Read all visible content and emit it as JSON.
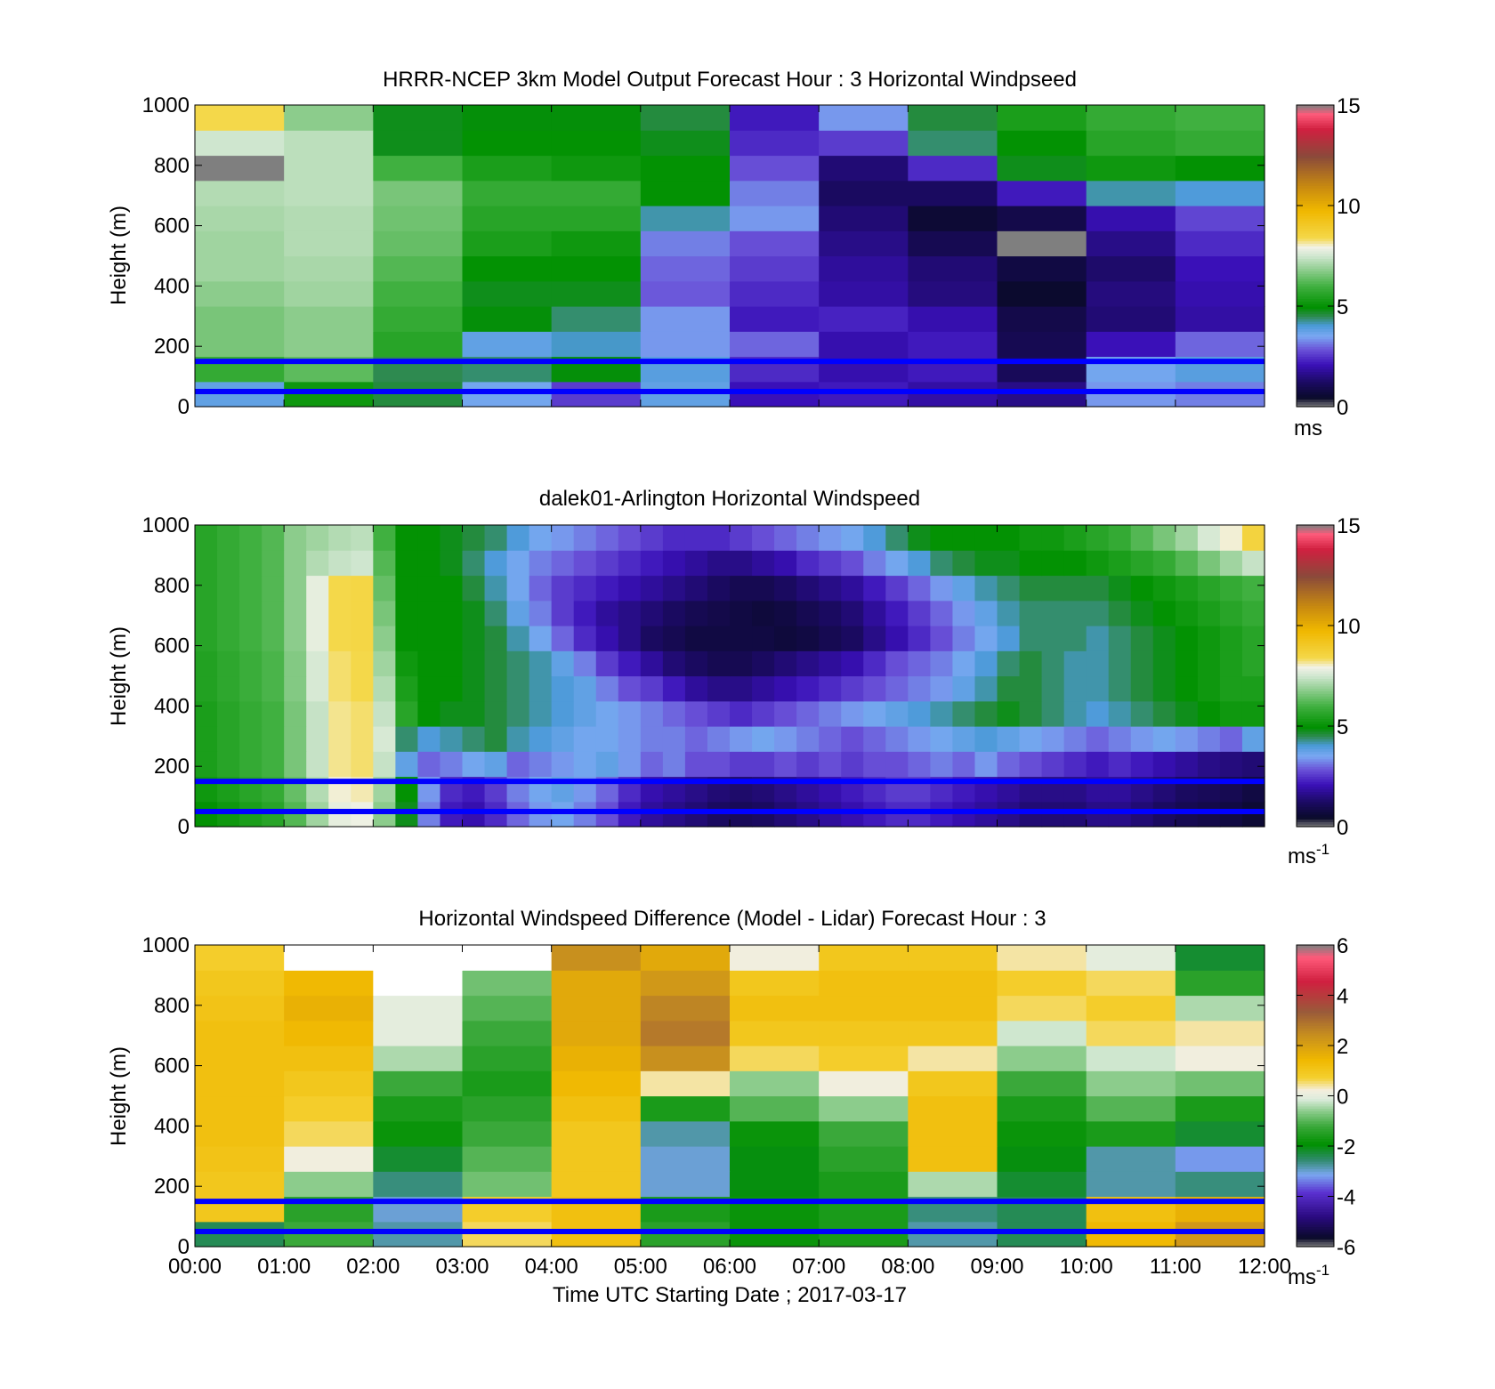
{
  "chart_data": [
    {
      "type": "heatmap",
      "title": "HRRR-NCEP 3km Model Output   Forecast Hour : 3 Horizontal Windpseed",
      "ylabel": "Height (m)",
      "xlabel": "",
      "ylim": [
        0,
        1000
      ],
      "yticks": [
        "0",
        "200",
        "400",
        "600",
        "800",
        "1000"
      ],
      "xticks": [],
      "colorbar": {
        "min": 0,
        "max": 15,
        "ticks": [
          "0",
          "5",
          "10",
          "15"
        ],
        "unit": "ms",
        "unit_sup": ""
      },
      "columns": 12,
      "grid": false,
      "reference_lines_m": [
        150,
        50
      ],
      "values": [
        [
          3.8,
          5.2,
          4.6,
          3.6,
          2.6,
          3.8,
          2.1,
          2.2,
          1.9,
          1.6,
          3.4,
          3.2
        ],
        [
          5.8,
          6.3,
          4.5,
          4.4,
          4.9,
          3.9,
          2.4,
          2.0,
          2.2,
          1.1,
          3.6,
          3.9
        ],
        [
          6.6,
          6.8,
          5.6,
          3.8,
          4.1,
          3.4,
          3.0,
          2.0,
          2.2,
          1.0,
          2.1,
          3.0
        ],
        [
          6.6,
          6.8,
          5.8,
          4.9,
          4.4,
          3.4,
          2.2,
          2.3,
          2.0,
          0.9,
          1.4,
          1.9
        ],
        [
          6.8,
          7.0,
          6.0,
          4.8,
          4.8,
          2.9,
          2.4,
          1.9,
          1.5,
          0.5,
          1.5,
          2.0
        ],
        [
          7.0,
          7.1,
          6.2,
          5.0,
          5.0,
          3.0,
          2.6,
          1.8,
          1.4,
          0.8,
          1.3,
          2.1
        ],
        [
          7.0,
          7.2,
          6.4,
          5.4,
          5.2,
          3.2,
          2.8,
          1.6,
          1.0,
          0.0,
          1.6,
          2.4
        ],
        [
          7.1,
          7.2,
          6.5,
          5.6,
          5.6,
          4.2,
          3.4,
          1.4,
          0.6,
          0.9,
          2.0,
          2.7
        ],
        [
          7.2,
          7.3,
          6.6,
          5.8,
          5.8,
          5.0,
          3.2,
          1.2,
          1.2,
          2.2,
          4.2,
          4.0
        ],
        [
          0.0,
          7.3,
          6.0,
          5.4,
          5.2,
          5.0,
          2.8,
          1.4,
          2.4,
          4.8,
          5.2,
          5.0
        ],
        [
          7.5,
          7.3,
          4.8,
          5.0,
          5.0,
          4.8,
          2.4,
          2.6,
          4.4,
          5.0,
          5.6,
          5.8
        ],
        [
          8.4,
          6.8,
          4.8,
          4.9,
          4.9,
          4.6,
          2.2,
          3.4,
          4.6,
          5.4,
          5.8,
          6.0
        ]
      ]
    },
    {
      "type": "heatmap",
      "title": "dalek01-Arlington  Horizontal Windspeed",
      "ylabel": "Height (m)",
      "xlabel": "",
      "ylim": [
        0,
        1000
      ],
      "yticks": [
        "0",
        "200",
        "400",
        "600",
        "800",
        "1000"
      ],
      "xticks": [],
      "colorbar": {
        "min": 0,
        "max": 15,
        "ticks": [
          "0",
          "5",
          "10",
          "15"
        ],
        "unit": "ms",
        "unit_sup": "-1"
      },
      "columns": 48,
      "grid": false,
      "reference_lines_m": [
        150,
        50
      ],
      "values": [
        [
          5.0,
          5.2,
          5.4,
          5.6,
          6.2,
          7.0,
          7.8,
          7.9,
          6.8,
          4.8,
          3.2,
          2.2,
          2.0,
          2.4,
          3.0,
          3.4,
          3.6,
          3.2,
          2.8,
          2.2,
          1.8,
          1.6,
          1.4,
          1.2,
          1.1,
          1.2,
          1.4,
          1.6,
          1.8,
          2.0,
          2.2,
          2.4,
          2.4,
          2.2,
          2.0,
          1.8,
          1.6,
          1.4,
          1.4,
          1.4,
          1.6,
          1.6,
          1.4,
          1.2,
          1.0,
          0.9,
          0.8,
          0.6
        ],
        [
          5.2,
          5.4,
          5.6,
          5.8,
          6.4,
          7.2,
          8.0,
          8.1,
          7.0,
          5.0,
          3.4,
          2.4,
          2.2,
          2.6,
          3.2,
          3.6,
          3.8,
          3.4,
          3.0,
          2.4,
          2.0,
          1.8,
          1.6,
          1.4,
          1.3,
          1.4,
          1.6,
          1.8,
          2.0,
          2.2,
          2.4,
          2.6,
          2.6,
          2.4,
          2.2,
          2.0,
          1.8,
          1.6,
          1.6,
          1.6,
          1.8,
          1.8,
          1.6,
          1.4,
          1.2,
          1.1,
          1.0,
          0.8
        ],
        [
          5.4,
          5.6,
          5.8,
          6.0,
          6.6,
          7.4,
          8.2,
          8.3,
          7.4,
          3.8,
          3.0,
          3.2,
          3.6,
          3.8,
          3.0,
          3.2,
          3.4,
          3.6,
          3.8,
          3.4,
          3.0,
          3.2,
          2.8,
          2.8,
          2.6,
          2.6,
          2.8,
          2.6,
          2.8,
          2.6,
          2.8,
          2.8,
          3.0,
          3.2,
          3.0,
          3.4,
          3.0,
          2.8,
          2.6,
          2.4,
          2.2,
          2.4,
          2.2,
          2.0,
          1.8,
          1.6,
          1.5,
          1.4
        ],
        [
          5.4,
          5.6,
          5.8,
          6.0,
          6.6,
          7.4,
          8.2,
          8.3,
          7.6,
          4.4,
          4.0,
          4.2,
          4.4,
          4.6,
          4.2,
          4.0,
          3.8,
          3.6,
          3.6,
          3.4,
          3.2,
          3.2,
          3.0,
          3.2,
          3.4,
          3.6,
          3.4,
          3.2,
          3.0,
          2.8,
          3.0,
          3.2,
          3.4,
          3.6,
          3.8,
          4.0,
          3.8,
          3.6,
          3.4,
          3.2,
          3.0,
          3.2,
          3.4,
          3.6,
          3.4,
          3.2,
          3.0,
          3.8
        ],
        [
          5.4,
          5.6,
          5.8,
          6.0,
          6.6,
          7.4,
          8.2,
          8.3,
          7.4,
          5.6,
          5.0,
          4.8,
          4.8,
          4.6,
          4.4,
          4.2,
          4.0,
          3.8,
          3.6,
          3.4,
          3.2,
          3.0,
          2.8,
          2.6,
          2.4,
          2.6,
          2.8,
          3.0,
          3.2,
          3.4,
          3.6,
          3.8,
          4.0,
          4.2,
          4.4,
          4.6,
          4.8,
          4.6,
          4.4,
          4.2,
          4.0,
          4.2,
          4.4,
          4.6,
          4.8,
          5.0,
          5.2,
          5.2
        ],
        [
          5.5,
          5.7,
          5.9,
          6.1,
          6.7,
          7.6,
          8.3,
          8.4,
          7.2,
          5.4,
          5.0,
          5.0,
          4.8,
          4.6,
          4.4,
          4.2,
          4.0,
          3.8,
          3.2,
          2.8,
          2.6,
          2.2,
          1.8,
          1.6,
          1.6,
          1.8,
          2.0,
          2.2,
          2.4,
          2.6,
          2.8,
          3.0,
          3.2,
          3.4,
          3.8,
          4.2,
          4.6,
          4.6,
          4.4,
          4.2,
          4.2,
          4.4,
          4.6,
          4.8,
          5.0,
          5.2,
          5.4,
          5.4
        ],
        [
          5.5,
          5.7,
          5.9,
          6.1,
          6.7,
          7.6,
          8.3,
          8.4,
          7.0,
          5.2,
          5.0,
          5.0,
          4.8,
          4.6,
          4.4,
          4.2,
          3.8,
          3.2,
          2.6,
          2.2,
          1.8,
          1.4,
          1.2,
          1.0,
          1.0,
          1.2,
          1.4,
          1.6,
          1.8,
          2.0,
          2.4,
          2.8,
          3.0,
          3.2,
          3.6,
          4.0,
          4.4,
          4.6,
          4.4,
          4.2,
          4.2,
          4.4,
          4.6,
          4.8,
          5.0,
          5.2,
          5.4,
          5.6
        ],
        [
          5.6,
          5.8,
          6.0,
          6.2,
          6.8,
          7.8,
          8.4,
          8.5,
          6.8,
          5.0,
          5.0,
          5.0,
          4.8,
          4.6,
          4.2,
          3.6,
          3.0,
          2.4,
          2.0,
          1.6,
          1.2,
          1.0,
          0.8,
          0.8,
          0.8,
          0.8,
          0.7,
          0.8,
          1.0,
          1.2,
          1.6,
          2.0,
          2.4,
          2.8,
          3.2,
          3.6,
          4.0,
          4.4,
          4.4,
          4.4,
          4.2,
          4.4,
          4.6,
          4.8,
          5.0,
          5.2,
          5.4,
          5.6
        ],
        [
          5.6,
          5.8,
          6.0,
          6.2,
          6.8,
          7.8,
          8.4,
          8.5,
          6.6,
          5.0,
          5.0,
          5.0,
          4.8,
          4.4,
          3.8,
          3.2,
          2.6,
          2.2,
          1.8,
          1.6,
          1.4,
          1.2,
          1.0,
          0.9,
          0.8,
          0.7,
          0.8,
          1.0,
          1.2,
          1.4,
          1.8,
          2.2,
          2.6,
          3.0,
          3.4,
          3.8,
          4.2,
          4.4,
          4.4,
          4.4,
          4.4,
          4.6,
          4.8,
          5.0,
          5.2,
          5.4,
          5.6,
          5.8
        ],
        [
          5.6,
          5.8,
          6.0,
          6.2,
          6.8,
          7.8,
          8.4,
          8.5,
          6.4,
          5.0,
          5.0,
          5.0,
          4.6,
          4.2,
          3.6,
          3.0,
          2.6,
          2.4,
          2.2,
          2.0,
          1.8,
          1.6,
          1.4,
          1.2,
          1.0,
          1.0,
          1.2,
          1.4,
          1.6,
          1.8,
          2.2,
          2.6,
          3.0,
          3.4,
          3.8,
          4.2,
          4.4,
          4.6,
          4.6,
          4.6,
          4.6,
          4.8,
          5.0,
          5.2,
          5.4,
          5.6,
          5.8,
          6.0
        ],
        [
          5.6,
          5.8,
          6.0,
          6.2,
          6.8,
          7.2,
          7.4,
          7.5,
          6.2,
          5.0,
          5.0,
          4.8,
          4.4,
          4.0,
          3.6,
          3.2,
          3.0,
          2.8,
          2.6,
          2.4,
          2.2,
          2.0,
          1.8,
          1.6,
          1.6,
          1.8,
          2.0,
          2.4,
          2.6,
          2.8,
          3.2,
          3.6,
          4.0,
          4.4,
          4.6,
          4.8,
          4.8,
          5.0,
          5.0,
          5.0,
          5.2,
          5.4,
          5.6,
          5.8,
          6.2,
          6.6,
          7.0,
          7.4
        ],
        [
          5.6,
          5.8,
          6.0,
          6.2,
          6.8,
          7.0,
          7.2,
          7.3,
          6.0,
          5.0,
          5.0,
          4.8,
          4.6,
          4.4,
          4.0,
          3.6,
          3.4,
          3.2,
          3.0,
          2.8,
          2.6,
          2.4,
          2.4,
          2.4,
          2.6,
          2.8,
          3.0,
          3.2,
          3.4,
          3.6,
          4.0,
          4.4,
          4.8,
          5.0,
          5.0,
          5.0,
          5.0,
          5.2,
          5.2,
          5.4,
          5.6,
          5.8,
          6.2,
          6.6,
          7.0,
          7.6,
          8.0,
          8.6
        ]
      ]
    },
    {
      "type": "heatmap",
      "title": "Horizontal Windspeed Difference (Model - Lidar) Forecast Hour : 3",
      "ylabel": "Height (m)",
      "xlabel": "Time UTC  Starting Date ; 2017-03-17",
      "ylim": [
        0,
        1000
      ],
      "yticks": [
        "0",
        "200",
        "400",
        "600",
        "800",
        "1000"
      ],
      "xticks": [
        "00:00",
        "01:00",
        "02:00",
        "03:00",
        "04:00",
        "05:00",
        "06:00",
        "07:00",
        "08:00",
        "09:00",
        "10:00",
        "11:00",
        "12:00"
      ],
      "colorbar": {
        "min": -6,
        "max": 6,
        "ticks": [
          "-6",
          "-4",
          "-2",
          "0",
          "2",
          "4",
          "6"
        ],
        "unit": "ms",
        "unit_sup": "-1"
      },
      "columns": 12,
      "grid": false,
      "reference_lines_m": [
        150,
        50
      ],
      "values": [
        [
          -2.4,
          -1.2,
          -2.8,
          0.6,
          1.2,
          -1.4,
          -1.8,
          -1.6,
          -2.8,
          -2.4,
          1.4,
          2.2
        ],
        [
          1.0,
          -1.4,
          -3.0,
          0.8,
          1.2,
          -1.6,
          -1.8,
          -1.6,
          -2.6,
          -2.4,
          1.2,
          1.6
        ],
        [
          1.0,
          -0.6,
          -2.6,
          -0.8,
          1.0,
          -3.0,
          -2.0,
          -1.6,
          -0.4,
          -2.2,
          -2.8,
          -2.6
        ],
        [
          1.1,
          0.2,
          -2.2,
          -1.0,
          1.0,
          -3.0,
          -2.0,
          -1.4,
          1.2,
          -2.0,
          -2.8,
          -3.2
        ],
        [
          1.2,
          0.6,
          -1.8,
          -1.2,
          1.0,
          -2.8,
          -1.8,
          -1.2,
          1.2,
          -1.8,
          -1.6,
          -2.2
        ],
        [
          1.2,
          0.8,
          -1.6,
          -1.4,
          1.2,
          -1.6,
          -1.0,
          -0.6,
          1.2,
          -1.6,
          -1.0,
          -1.6
        ],
        [
          1.2,
          1.0,
          -1.2,
          -1.6,
          1.4,
          0.4,
          -0.6,
          0.2,
          1.0,
          -1.2,
          -0.6,
          -0.8
        ],
        [
          1.2,
          1.2,
          -0.4,
          -1.4,
          1.6,
          2.4,
          0.6,
          0.8,
          0.4,
          -0.6,
          -0.2,
          0.2
        ],
        [
          1.2,
          1.4,
          0.0,
          -1.2,
          1.8,
          2.8,
          1.0,
          1.0,
          1.0,
          -0.2,
          0.6,
          0.4
        ],
        [
          1.1,
          1.6,
          0.0,
          -1.0,
          1.8,
          2.6,
          1.2,
          1.2,
          1.2,
          0.6,
          0.8,
          -0.4
        ],
        [
          1.0,
          1.4,
          null,
          -0.8,
          1.8,
          2.2,
          1.0,
          1.2,
          1.2,
          0.8,
          0.6,
          -1.4
        ],
        [
          0.8,
          null,
          null,
          null,
          2.4,
          1.8,
          0.2,
          1.0,
          1.0,
          0.4,
          0.0,
          -2.2
        ]
      ]
    }
  ]
}
